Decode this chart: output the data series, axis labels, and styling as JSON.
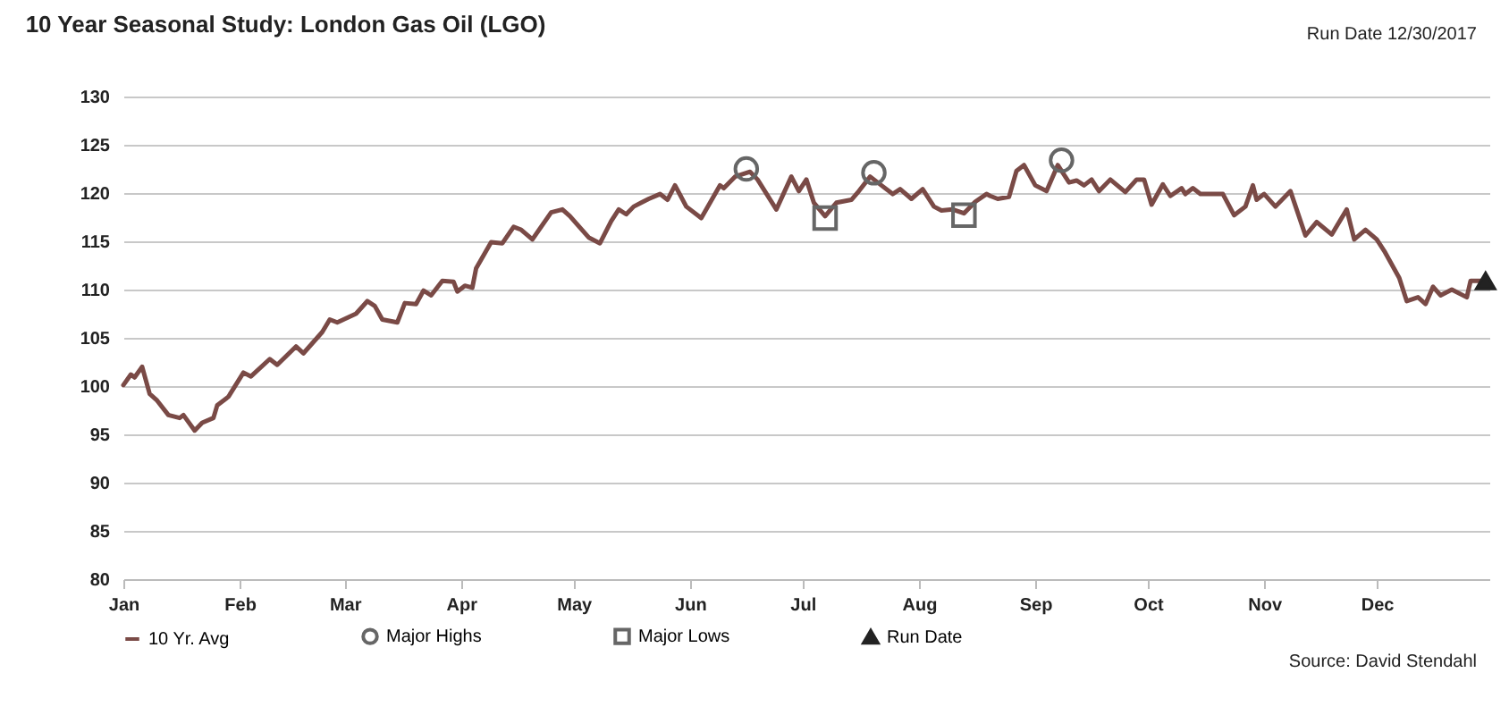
{
  "chart_data": {
    "type": "line",
    "title": "10 Year Seasonal Study: London Gas Oil (LGO)",
    "annotations": [
      "Run Date  12/30/2017",
      "Source: David Stendahl"
    ],
    "xlim": [
      "--01-01",
      "--12-31"
    ],
    "xticks": [
      {
        "value": "--01-01",
        "label": "Jan"
      },
      {
        "value": "--02-01",
        "label": "Feb"
      },
      {
        "value": "--03-01",
        "label": "Mar"
      },
      {
        "value": "--04-01",
        "label": "Apr"
      },
      {
        "value": "--05-01",
        "label": "May"
      },
      {
        "value": "--06-01",
        "label": "Jun"
      },
      {
        "value": "--07-01",
        "label": "Jul"
      },
      {
        "value": "--08-01",
        "label": "Aug"
      },
      {
        "value": "--09-01",
        "label": "Sep"
      },
      {
        "value": "--10-01",
        "label": "Oct"
      },
      {
        "value": "--11-01",
        "label": "Nov"
      },
      {
        "value": "--12-01",
        "label": "Dec"
      }
    ],
    "ylim": [
      80,
      130
    ],
    "yticks": [
      80,
      85,
      90,
      95,
      100,
      105,
      110,
      115,
      120,
      125,
      130
    ],
    "grid": "y",
    "legend": "bottom",
    "series": [
      {
        "name": "10 Yr. Avg",
        "color": "#7a4a46",
        "line_style": "solid",
        "marker": "none",
        "x": [
          "--01-01",
          "--01-03",
          "--01-04",
          "--01-06",
          "--01-08",
          "--01-10",
          "--01-13",
          "--01-16",
          "--01-17",
          "--01-20",
          "--01-22",
          "--01-25",
          "--01-26",
          "--01-29",
          "--02-02",
          "--02-04",
          "--02-09",
          "--02-11",
          "--02-16",
          "--02-18",
          "--02-23",
          "--02-25",
          "--02-27",
          "--03-04",
          "--03-07",
          "--03-09",
          "--03-11",
          "--03-15",
          "--03-17",
          "--03-20",
          "--03-22",
          "--03-24",
          "--03-27",
          "--03-30",
          "--03-31",
          "--04-02",
          "--04-04",
          "--04-05",
          "--04-09",
          "--04-12",
          "--04-15",
          "--04-17",
          "--04-20",
          "--04-25",
          "--04-28",
          "--04-30",
          "--05-05",
          "--05-08",
          "--05-11",
          "--05-13",
          "--05-15",
          "--05-17",
          "--05-19",
          "--05-21",
          "--05-24",
          "--05-26",
          "--05-28",
          "--05-31",
          "--06-04",
          "--06-09",
          "--06-10",
          "--06-13",
          "--06-17",
          "--06-19",
          "--06-24",
          "--06-28",
          "--06-30",
          "--07-02",
          "--07-04",
          "--07-07",
          "--07-10",
          "--07-14",
          "--07-16",
          "--07-19",
          "--07-22",
          "--07-25",
          "--07-27",
          "--07-30",
          "--08-02",
          "--08-05",
          "--08-07",
          "--08-10",
          "--08-13",
          "--08-16",
          "--08-19",
          "--08-20",
          "--08-22",
          "--08-25",
          "--08-27",
          "--08-29",
          "--09-01",
          "--09-04",
          "--09-07",
          "--09-10",
          "--09-12",
          "--09-14",
          "--09-16",
          "--09-18",
          "--09-21",
          "--09-25",
          "--09-28",
          "--09-30",
          "--10-02",
          "--10-05",
          "--10-07",
          "--10-10",
          "--10-11",
          "--10-13",
          "--10-15",
          "--10-21",
          "--10-24",
          "--10-27",
          "--10-29",
          "--10-30",
          "--11-01",
          "--11-04",
          "--11-08",
          "--11-12",
          "--11-15",
          "--11-19",
          "--11-23",
          "--11-25",
          "--11-28",
          "--12-01",
          "--12-03",
          "--12-07",
          "--12-09",
          "--12-12",
          "--12-14",
          "--12-16",
          "--12-18",
          "--12-21",
          "--12-25",
          "--12-26",
          "--12-30"
        ],
        "values": [
          100.1,
          101.2,
          100.9,
          102,
          99.2,
          98.5,
          97,
          96.7,
          97,
          95.4,
          96.2,
          96.7,
          98,
          98.9,
          101.4,
          101,
          102.8,
          102.2,
          104.1,
          103.4,
          105.6,
          106.9,
          106.6,
          107.5,
          108.8,
          108.3,
          106.9,
          106.6,
          108.6,
          108.5,
          109.9,
          109.4,
          110.9,
          110.8,
          109.8,
          110.4,
          110.2,
          112.2,
          114.9,
          114.8,
          116.5,
          116.2,
          115.2,
          118,
          118.3,
          117.6,
          115.4,
          114.8,
          117.1,
          118.3,
          117.8,
          118.6,
          119,
          119.4,
          119.9,
          119.3,
          120.8,
          118.6,
          117.4,
          120.8,
          120.5,
          121.7,
          122.2,
          121.4,
          118.3,
          121.7,
          120.2,
          121.4,
          119,
          117.6,
          119,
          119.3,
          120.2,
          121.7,
          120.8,
          119.9,
          120.4,
          119.4,
          120.4,
          118.6,
          118.2,
          118.3,
          117.9,
          119.1,
          119.9,
          119.7,
          119.4,
          119.6,
          122.3,
          122.9,
          120.8,
          120.2,
          122.9,
          121.1,
          121.3,
          120.8,
          121.4,
          120.2,
          121.4,
          120.1,
          121.4,
          121.4,
          118.8,
          120.9,
          119.7,
          120.5,
          119.9,
          120.5,
          119.9,
          119.9,
          117.7,
          118.6,
          120.8,
          119.3,
          119.9,
          118.6,
          120.2,
          115.6,
          117,
          115.7,
          118.3,
          115.2,
          116.2,
          115.2,
          114,
          111.2,
          108.8,
          109.2,
          108.5,
          110.3,
          109.4,
          110,
          109.2,
          110.9,
          110.9
        ]
      },
      {
        "name": "Major Highs",
        "type": "scatter",
        "color": "#666666",
        "marker": "circle",
        "x": [
          "--06-16",
          "--07-20",
          "--09-08"
        ],
        "values": [
          122.5,
          122.1,
          123.4
        ]
      },
      {
        "name": "Major Lows",
        "type": "scatter",
        "color": "#666666",
        "marker": "square",
        "x": [
          "--07-07",
          "--08-13"
        ],
        "values": [
          117.4,
          117.7
        ]
      },
      {
        "name": "Run Date",
        "color": "#222222",
        "line_style": "solid",
        "marker": "triangle",
        "x": [
          "--12-30"
        ],
        "values": [
          110.9
        ]
      }
    ]
  }
}
